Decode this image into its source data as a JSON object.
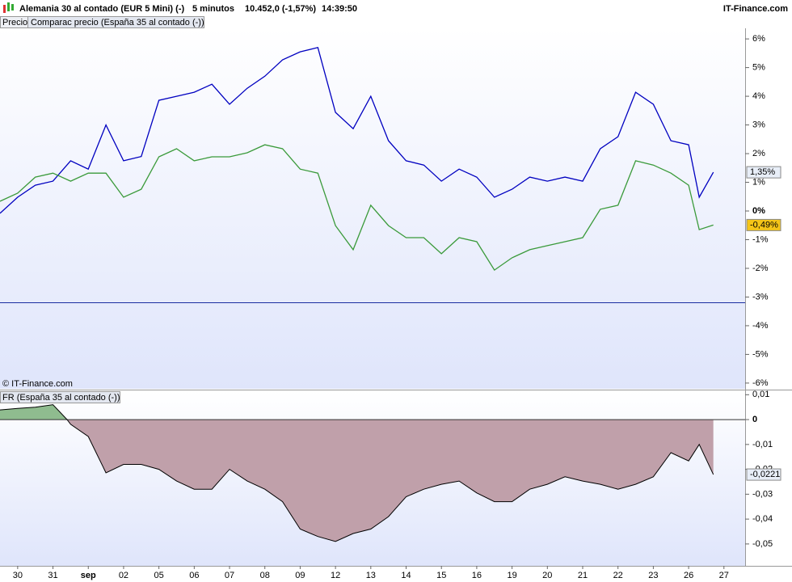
{
  "header": {
    "title": "Alemania 30 al contado (EUR 5 Mini) (-)",
    "interval": "5 minutos",
    "price": "10.452,0 (-1,57%)",
    "time": "14:39:50",
    "brand": "IT-Finance.com"
  },
  "tabs": [
    "Precio",
    "Comparac precio (España 35 al contado (-))"
  ],
  "chart_data": [
    {
      "type": "line",
      "copyright": "© IT-Finance.com",
      "x": [
        -0.5,
        0,
        0.5,
        1,
        1.5,
        2,
        2.5,
        3,
        3.5,
        4,
        4.5,
        5,
        5.5,
        6,
        6.5,
        7,
        7.5,
        8,
        8.5,
        9,
        9.5,
        10,
        10.5,
        11,
        11.5,
        12,
        12.5,
        13,
        13.5,
        14,
        14.5,
        15,
        15.5,
        16,
        16.5,
        17,
        17.5,
        18,
        18.5,
        19,
        19.3,
        19.7
      ],
      "series": [
        {
          "color": "#0000c0",
          "values": [
            -0.08,
            0.48,
            0.9,
            1.04,
            1.75,
            1.46,
            3.0,
            1.75,
            1.9,
            3.86,
            4.0,
            4.14,
            4.42,
            3.72,
            4.28,
            4.7,
            5.27,
            5.55,
            5.7,
            3.44,
            2.87,
            4.0,
            2.45,
            1.75,
            1.6,
            1.04,
            1.46,
            1.18,
            0.48,
            0.76,
            1.18,
            1.04,
            1.18,
            1.04,
            2.17,
            2.59,
            4.14,
            3.72,
            2.45,
            2.31,
            0.48,
            1.35
          ],
          "end_label": {
            "value": 1.35,
            "label": "1,35%",
            "background": "#e8eef8"
          }
        },
        {
          "color": "#3a9a3a",
          "values": [
            0.34,
            0.62,
            1.18,
            1.32,
            1.04,
            1.32,
            1.32,
            0.48,
            0.76,
            1.89,
            2.17,
            1.75,
            1.89,
            1.89,
            2.03,
            2.31,
            2.17,
            1.46,
            1.32,
            -0.51,
            -1.35,
            0.2,
            -0.51,
            -0.93,
            -0.93,
            -1.49,
            -0.93,
            -1.07,
            -2.06,
            -1.63,
            -1.35,
            -1.21,
            -1.07,
            -0.93,
            0.06,
            0.2,
            1.75,
            1.6,
            1.32,
            0.9,
            -0.65,
            -0.49
          ],
          "end_label": {
            "value": -0.49,
            "label": "-0,49%",
            "background": "#f5c518"
          }
        }
      ],
      "hline": -3.2,
      "hline_color": "#1a2ea0",
      "xlim": [
        -0.5,
        20.6
      ],
      "ylim": [
        -6.2,
        6.37
      ],
      "yticks": [
        {
          "value": 6,
          "label": "6%"
        },
        {
          "value": 5,
          "label": "5%"
        },
        {
          "value": 4,
          "label": "4%"
        },
        {
          "value": 3,
          "label": "3%"
        },
        {
          "value": 2,
          "label": "2%"
        },
        {
          "value": 1,
          "label": "1%"
        },
        {
          "value": 0,
          "label": "0%"
        },
        {
          "value": -1,
          "label": "-1%"
        },
        {
          "value": -2,
          "label": "-2%"
        },
        {
          "value": -3,
          "label": "-3%"
        },
        {
          "value": -4,
          "label": "-4%"
        },
        {
          "value": -5,
          "label": "-5%"
        },
        {
          "value": -6,
          "label": "-6%"
        }
      ]
    },
    {
      "type": "area",
      "title": "FR (España 35 al contado (-))",
      "x": [
        -0.5,
        0,
        0.5,
        1,
        1.4,
        1.5,
        2,
        2.5,
        3,
        3.5,
        4,
        4.5,
        5,
        5.5,
        6,
        6.5,
        7,
        7.5,
        8,
        8.5,
        9,
        9.5,
        10,
        10.5,
        11,
        11.5,
        12,
        12.5,
        13,
        13.5,
        14,
        14.5,
        15,
        15.5,
        16,
        16.5,
        17,
        17.5,
        18,
        18.5,
        19,
        19.3,
        19.7
      ],
      "values": [
        0.0039,
        0.0045,
        0.005,
        0.006,
        0,
        -0.0019,
        -0.0068,
        -0.0214,
        -0.018,
        -0.018,
        -0.02,
        -0.0247,
        -0.028,
        -0.028,
        -0.02,
        -0.0247,
        -0.028,
        -0.033,
        -0.044,
        -0.047,
        -0.049,
        -0.0458,
        -0.044,
        -0.039,
        -0.031,
        -0.028,
        -0.026,
        -0.0247,
        -0.0295,
        -0.033,
        -0.033,
        -0.028,
        -0.026,
        -0.023,
        -0.0247,
        -0.026,
        -0.028,
        -0.026,
        -0.023,
        -0.0133,
        -0.0166,
        -0.01,
        -0.0221
      ],
      "color": "#000000",
      "positive_color": "#8fbc8f",
      "negative_color": "#c0a0aa",
      "end_label": {
        "value": -0.0221,
        "label": "-0,0221",
        "background": "#e8eef8"
      },
      "xlim": [
        -0.5,
        20.6
      ],
      "ylim": [
        -0.0588,
        0.0114
      ],
      "yticks": [
        {
          "value": 0.01,
          "label": "0,01"
        },
        0,
        {
          "value": -0.01,
          "label": "-0,01"
        },
        {
          "value": -0.02,
          "label": "-0,02"
        },
        {
          "value": -0.03,
          "label": "-0,03"
        },
        {
          "value": -0.04,
          "label": "-0,04"
        },
        {
          "value": -0.05,
          "label": "-0,05"
        }
      ],
      "xticks": [
        {
          "value": 0,
          "label": "30"
        },
        {
          "value": 1,
          "label": "31"
        },
        {
          "value": 2,
          "label": "sep"
        },
        {
          "value": 3,
          "label": "02"
        },
        {
          "value": 4,
          "label": "05"
        },
        {
          "value": 5,
          "label": "06"
        },
        {
          "value": 6,
          "label": "07"
        },
        {
          "value": 7,
          "label": "08"
        },
        {
          "value": 8,
          "label": "09"
        },
        {
          "value": 9,
          "label": "12"
        },
        {
          "value": 10,
          "label": "13"
        },
        {
          "value": 11,
          "label": "14"
        },
        {
          "value": 12,
          "label": "15"
        },
        {
          "value": 13,
          "label": "16"
        },
        {
          "value": 14,
          "label": "19"
        },
        {
          "value": 15,
          "label": "20"
        },
        {
          "value": 16,
          "label": "21"
        },
        {
          "value": 17,
          "label": "22"
        },
        {
          "value": 18,
          "label": "23"
        },
        {
          "value": 19,
          "label": "26"
        },
        {
          "value": 20,
          "label": "27"
        }
      ]
    }
  ]
}
